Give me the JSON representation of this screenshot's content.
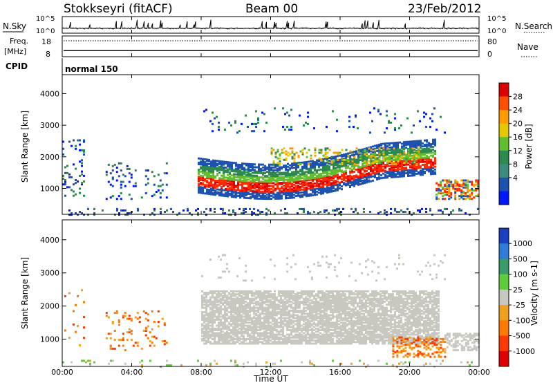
{
  "header": {
    "station": "Stokkseyri (fitACF)",
    "beam": "Beam 00",
    "date": "23/Feb/2012"
  },
  "top_panels": {
    "nsky_label": "N.Sky",
    "nsky_ticks": [
      "10^5",
      "10^0"
    ],
    "nsearch_label": "N.Search",
    "nsearch_ticks": [
      "10^5",
      "10^0"
    ],
    "freq_label": "Freq.",
    "freq_unit": "[MHz]",
    "freq_ticks": [
      "18",
      "8"
    ],
    "nave_label": "Nave",
    "nave_ticks": [
      "80",
      "0"
    ],
    "cpid_label": "CPID",
    "cpid_value": "normal 150"
  },
  "chart_data": [
    {
      "type": "heatmap",
      "panel": "power",
      "ylabel": "Slant Range [km]",
      "xlabel": "",
      "colorbar_label": "Power [dB]",
      "colorbar_ticks": [
        "28",
        "24",
        "20",
        "16",
        "12",
        "8",
        "4"
      ],
      "colorbar_colors": [
        "#dd0000",
        "#ff5000",
        "#ff9a00",
        "#e4c800",
        "#62bd2f",
        "#2c8a4e",
        "#3f8a7f",
        "#1f52b0",
        "#0018ff"
      ],
      "y_ticks": [
        1000,
        2000,
        3000,
        4000
      ],
      "ylim": [
        180,
        4600
      ],
      "x_ticks": [
        "00:00",
        "04:00",
        "08:00",
        "12:00",
        "16:00",
        "20:00",
        "00:00"
      ],
      "xlim_hours": [
        0,
        24
      ]
    },
    {
      "type": "heatmap",
      "panel": "velocity",
      "ylabel": "Slant Range [km]",
      "xlabel": "Time UT",
      "colorbar_label": "Velocity [m s-1]",
      "colorbar_ticks": [
        "1000",
        "500",
        "100",
        "25",
        "-25",
        "-100",
        "-500",
        "-1000"
      ],
      "colorbar_colors": [
        "#1a3fc0",
        "#2f7dd8",
        "#3a9a6a",
        "#5fcc3a",
        "#c8c8c0",
        "#f0a020",
        "#ff7a00",
        "#ff3a00",
        "#e00000"
      ],
      "y_ticks": [
        1000,
        2000,
        3000,
        4000
      ],
      "ylim": [
        180,
        4600
      ],
      "x_ticks": [
        "00:00",
        "04:00",
        "08:00",
        "12:00",
        "16:00",
        "20:00",
        "00:00"
      ],
      "xlim_hours": [
        0,
        24
      ]
    }
  ]
}
